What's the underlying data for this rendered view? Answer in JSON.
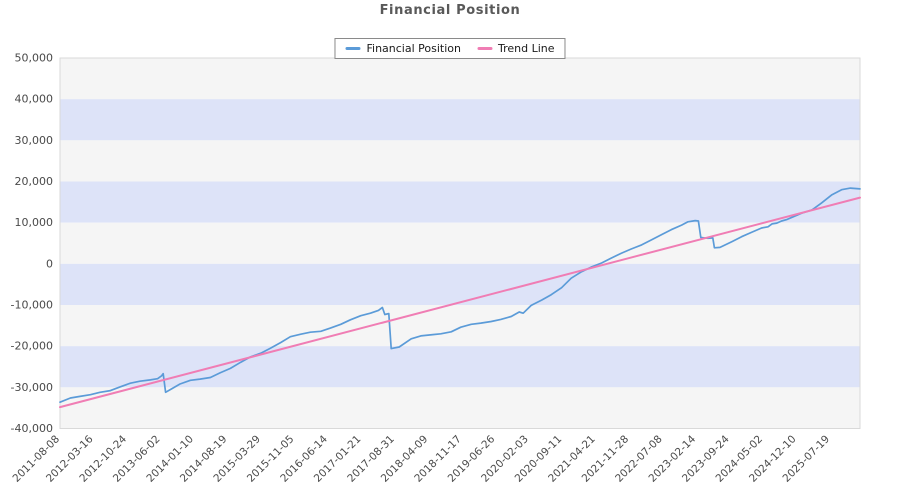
{
  "title": "Financial Position",
  "chart_data": {
    "type": "line",
    "title": "Financial Position",
    "legend_position": "top-center",
    "grid": "band-striped",
    "ylim": [
      -40000,
      50000
    ],
    "band_step": 10000,
    "band_colors": [
      "#f5f5f5",
      "#dde3f8"
    ],
    "plot_border_color": "#d9d9d9",
    "tick_label_color": "#4a4a4a",
    "title_color": "#595959",
    "y_ticks": [
      {
        "value": 50000,
        "label": "50,000"
      },
      {
        "value": 40000,
        "label": "40,000"
      },
      {
        "value": 30000,
        "label": "30,000"
      },
      {
        "value": 20000,
        "label": "20,000"
      },
      {
        "value": 10000,
        "label": "10,000"
      },
      {
        "value": 0,
        "label": "0"
      },
      {
        "value": -10000,
        "label": "-10,000"
      },
      {
        "value": -20000,
        "label": "-20,000"
      },
      {
        "value": -30000,
        "label": "-30,000"
      },
      {
        "value": -40000,
        "label": "-40,000"
      }
    ],
    "x_ticks": [
      "2011-08-08",
      "2012-03-16",
      "2012-10-24",
      "2013-06-02",
      "2014-01-10",
      "2014-08-19",
      "2015-03-29",
      "2015-11-05",
      "2016-06-14",
      "2017-01-21",
      "2017-08-31",
      "2018-04-09",
      "2018-11-17",
      "2019-06-26",
      "2020-02-03",
      "2020-09-11",
      "2021-04-21",
      "2021-11-28",
      "2022-07-08",
      "2023-02-14",
      "2023-09-24",
      "2024-05-02",
      "2024-12-10",
      "2025-07-19"
    ],
    "x_tick_span_fraction": 0.9625,
    "series": [
      {
        "name": "Financial Position",
        "color": "#5b9bd8",
        "stroke_width": 1.7,
        "points": [
          [
            0.0,
            -33600
          ],
          [
            0.013,
            -32600
          ],
          [
            0.025,
            -32200
          ],
          [
            0.038,
            -31800
          ],
          [
            0.05,
            -31200
          ],
          [
            0.063,
            -30800
          ],
          [
            0.075,
            -29900
          ],
          [
            0.088,
            -29000
          ],
          [
            0.1,
            -28500
          ],
          [
            0.113,
            -28200
          ],
          [
            0.122,
            -27900
          ],
          [
            0.127,
            -27200
          ],
          [
            0.129,
            -26700
          ],
          [
            0.132,
            -31200
          ],
          [
            0.14,
            -30300
          ],
          [
            0.15,
            -29200
          ],
          [
            0.163,
            -28300
          ],
          [
            0.175,
            -28000
          ],
          [
            0.188,
            -27600
          ],
          [
            0.2,
            -26500
          ],
          [
            0.213,
            -25400
          ],
          [
            0.226,
            -23900
          ],
          [
            0.238,
            -22600
          ],
          [
            0.251,
            -21700
          ],
          [
            0.263,
            -20500
          ],
          [
            0.276,
            -19100
          ],
          [
            0.288,
            -17700
          ],
          [
            0.301,
            -17100
          ],
          [
            0.313,
            -16600
          ],
          [
            0.326,
            -16400
          ],
          [
            0.338,
            -15600
          ],
          [
            0.351,
            -14700
          ],
          [
            0.363,
            -13600
          ],
          [
            0.376,
            -12600
          ],
          [
            0.388,
            -12000
          ],
          [
            0.398,
            -11300
          ],
          [
            0.403,
            -10600
          ],
          [
            0.406,
            -12300
          ],
          [
            0.411,
            -12100
          ],
          [
            0.414,
            -20600
          ],
          [
            0.424,
            -20200
          ],
          [
            0.439,
            -18200
          ],
          [
            0.451,
            -17500
          ],
          [
            0.466,
            -17200
          ],
          [
            0.476,
            -17000
          ],
          [
            0.489,
            -16500
          ],
          [
            0.501,
            -15400
          ],
          [
            0.514,
            -14700
          ],
          [
            0.526,
            -14400
          ],
          [
            0.539,
            -14000
          ],
          [
            0.551,
            -13500
          ],
          [
            0.564,
            -12800
          ],
          [
            0.574,
            -11700
          ],
          [
            0.579,
            -12000
          ],
          [
            0.589,
            -10100
          ],
          [
            0.602,
            -8800
          ],
          [
            0.614,
            -7500
          ],
          [
            0.627,
            -5800
          ],
          [
            0.639,
            -3500
          ],
          [
            0.652,
            -1900
          ],
          [
            0.664,
            -800
          ],
          [
            0.677,
            200
          ],
          [
            0.689,
            1400
          ],
          [
            0.702,
            2600
          ],
          [
            0.714,
            3600
          ],
          [
            0.727,
            4600
          ],
          [
            0.739,
            5800
          ],
          [
            0.752,
            7100
          ],
          [
            0.764,
            8300
          ],
          [
            0.777,
            9400
          ],
          [
            0.785,
            10200
          ],
          [
            0.794,
            10500
          ],
          [
            0.798,
            10400
          ],
          [
            0.801,
            6400
          ],
          [
            0.81,
            6200
          ],
          [
            0.816,
            6300
          ],
          [
            0.818,
            3900
          ],
          [
            0.825,
            4000
          ],
          [
            0.84,
            5400
          ],
          [
            0.852,
            6600
          ],
          [
            0.865,
            7700
          ],
          [
            0.877,
            8700
          ],
          [
            0.885,
            9000
          ],
          [
            0.89,
            9700
          ],
          [
            0.896,
            9900
          ],
          [
            0.902,
            10400
          ],
          [
            0.909,
            10800
          ],
          [
            0.915,
            11300
          ],
          [
            0.927,
            12300
          ],
          [
            0.94,
            13100
          ],
          [
            0.952,
            14800
          ],
          [
            0.965,
            16800
          ],
          [
            0.977,
            18000
          ],
          [
            0.988,
            18400
          ],
          [
            1.0,
            18200
          ]
        ]
      },
      {
        "name": "Trend Line",
        "color": "#f07db4",
        "stroke_width": 2,
        "points": [
          [
            0.0,
            -34800
          ],
          [
            1.0,
            16100
          ]
        ]
      }
    ]
  }
}
